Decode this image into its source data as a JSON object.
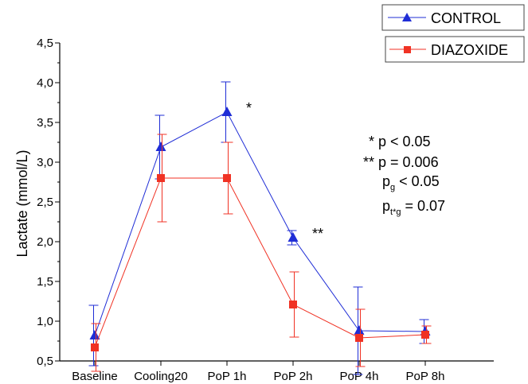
{
  "chart_data": {
    "type": "line",
    "title": "",
    "xlabel": "",
    "ylabel": "Lactate (mmol/L)",
    "categories": [
      "Baseline",
      "Cooling20",
      "PoP 1h",
      "PoP 2h",
      "PoP 4h",
      "PoP 8h"
    ],
    "ylim": [
      0.5,
      4.5
    ],
    "yticks": [
      "0,5",
      "1,0",
      "1,5",
      "2,0",
      "2,5",
      "3,0",
      "3,5",
      "4,0",
      "4,5"
    ],
    "grid": false,
    "legend_position": "top-right",
    "series": [
      {
        "name": "CONTROL",
        "color": "#1f2dd6",
        "marker": "triangle",
        "values": [
          0.82,
          3.19,
          3.63,
          2.05,
          0.88,
          0.87
        ],
        "error": [
          0.38,
          0.4,
          0.38,
          0.09,
          0.55,
          0.15
        ]
      },
      {
        "name": "DIAZOXIDE",
        "color": "#f03224",
        "marker": "square",
        "values": [
          0.67,
          2.8,
          2.8,
          1.21,
          0.79,
          0.83
        ],
        "error": [
          0.3,
          0.55,
          0.45,
          0.41,
          0.36,
          0.11
        ]
      }
    ],
    "point_annotations": [
      {
        "category": "PoP 1h",
        "series": "CONTROL",
        "text": "*"
      },
      {
        "category": "PoP 2h",
        "series": "CONTROL",
        "text": "**"
      }
    ],
    "stats": {
      "line1": "* p < 0.05",
      "line2": "** p = 0.006",
      "line3_main": "p",
      "line3_sub": "g",
      "line3_rest": " < 0.05",
      "line4_main": "p",
      "line4_sub": "t*g",
      "line4_rest": " = 0.07"
    }
  }
}
